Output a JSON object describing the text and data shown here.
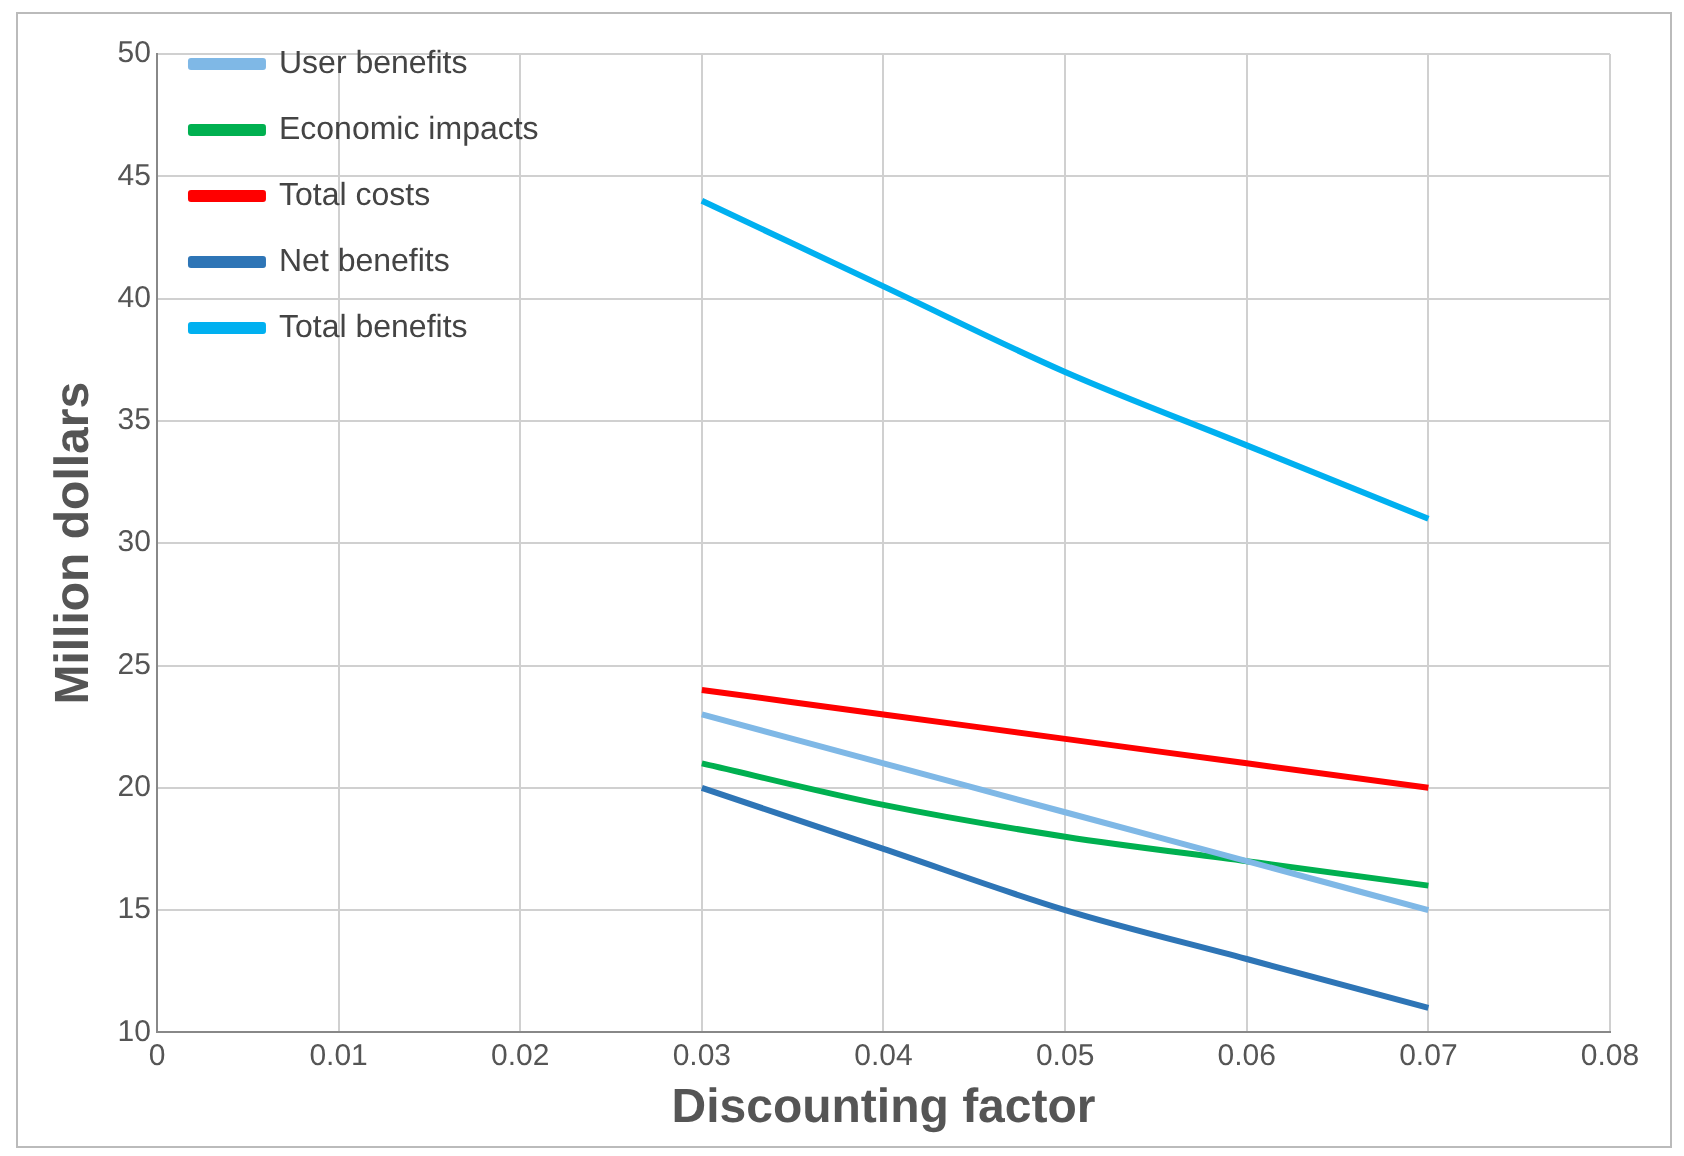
{
  "chart_data": {
    "type": "line",
    "xlabel": "Discounting factor",
    "ylabel": "Million dollars",
    "x": [
      0.03,
      0.04,
      0.05,
      0.06,
      0.07
    ],
    "series": [
      {
        "name": "User benefits",
        "color": "#7fb8e6",
        "values": [
          23,
          21,
          19,
          17,
          15
        ]
      },
      {
        "name": "Economic impacts",
        "color": "#00b050",
        "values": [
          21,
          19.3,
          18,
          17,
          16
        ]
      },
      {
        "name": "Total costs",
        "color": "#ff0000",
        "values": [
          24,
          23,
          22,
          21,
          20
        ]
      },
      {
        "name": "Net benefits",
        "color": "#2e75b6",
        "values": [
          20,
          17.5,
          15,
          13,
          11
        ]
      },
      {
        "name": "Total benefits",
        "color": "#00b0f0",
        "values": [
          44,
          40.5,
          37,
          34,
          31
        ]
      }
    ],
    "xlim": [
      0,
      0.08
    ],
    "xticks": [
      0,
      0.01,
      0.02,
      0.03,
      0.04,
      0.05,
      0.06,
      0.07,
      0.08
    ],
    "ylim": [
      10,
      50
    ],
    "yticks": [
      10,
      15,
      20,
      25,
      30,
      35,
      40,
      45,
      50
    ],
    "grid": true,
    "legend": "top left",
    "marker": "none",
    "line_style": "solid"
  }
}
